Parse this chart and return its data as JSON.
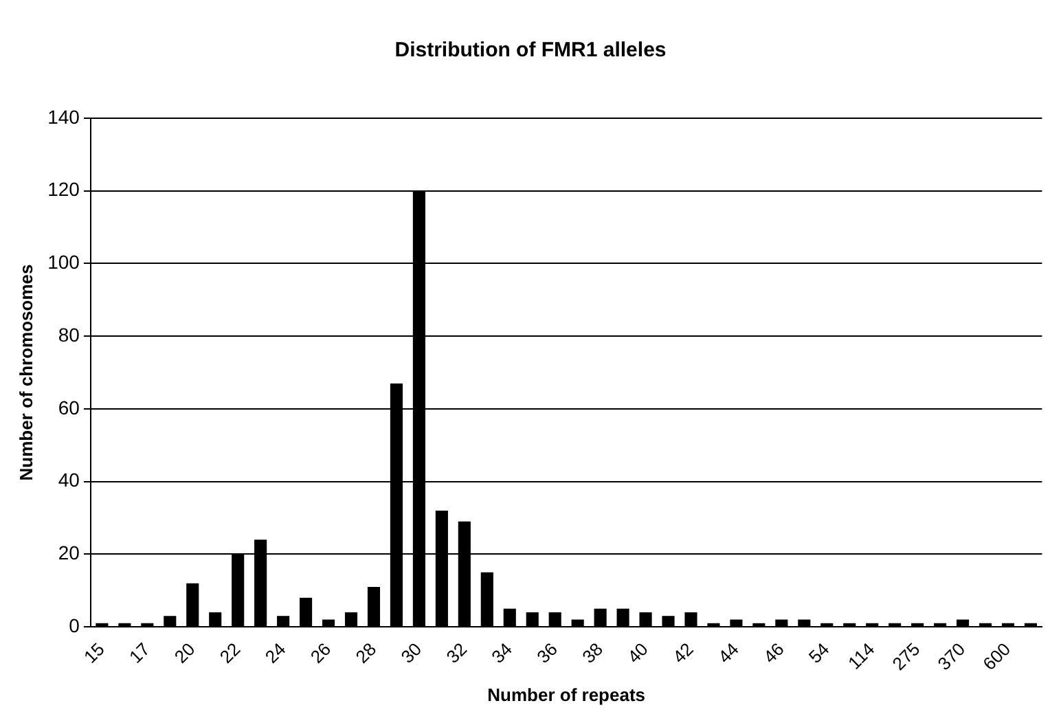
{
  "chart_data": {
    "type": "bar",
    "title": "Distribution of FMR1 alleles",
    "xlabel": "Number of repeats",
    "ylabel": "Number of chromosomes",
    "categories": [
      "15",
      null,
      "17",
      null,
      "20",
      null,
      "22",
      null,
      "24",
      null,
      "26",
      null,
      "28",
      null,
      "30",
      null,
      "32",
      null,
      "34",
      null,
      "36",
      null,
      "38",
      null,
      "40",
      null,
      "42",
      null,
      "44",
      null,
      "46",
      null,
      "54",
      null,
      "114",
      null,
      "275",
      null,
      "370",
      null,
      "600",
      null
    ],
    "values": [
      1,
      1,
      1,
      3,
      12,
      4,
      20,
      24,
      3,
      8,
      2,
      4,
      11,
      67,
      120,
      32,
      29,
      15,
      5,
      4,
      4,
      2,
      5,
      5,
      4,
      3,
      4,
      1,
      2,
      1,
      2,
      2,
      1,
      1,
      1,
      1,
      1,
      1,
      2,
      1,
      1,
      1
    ],
    "color": "#000000",
    "ylim": [
      0,
      140
    ],
    "yticks": [
      0,
      20,
      40,
      60,
      80,
      100,
      120,
      140
    ],
    "grid": "y"
  }
}
